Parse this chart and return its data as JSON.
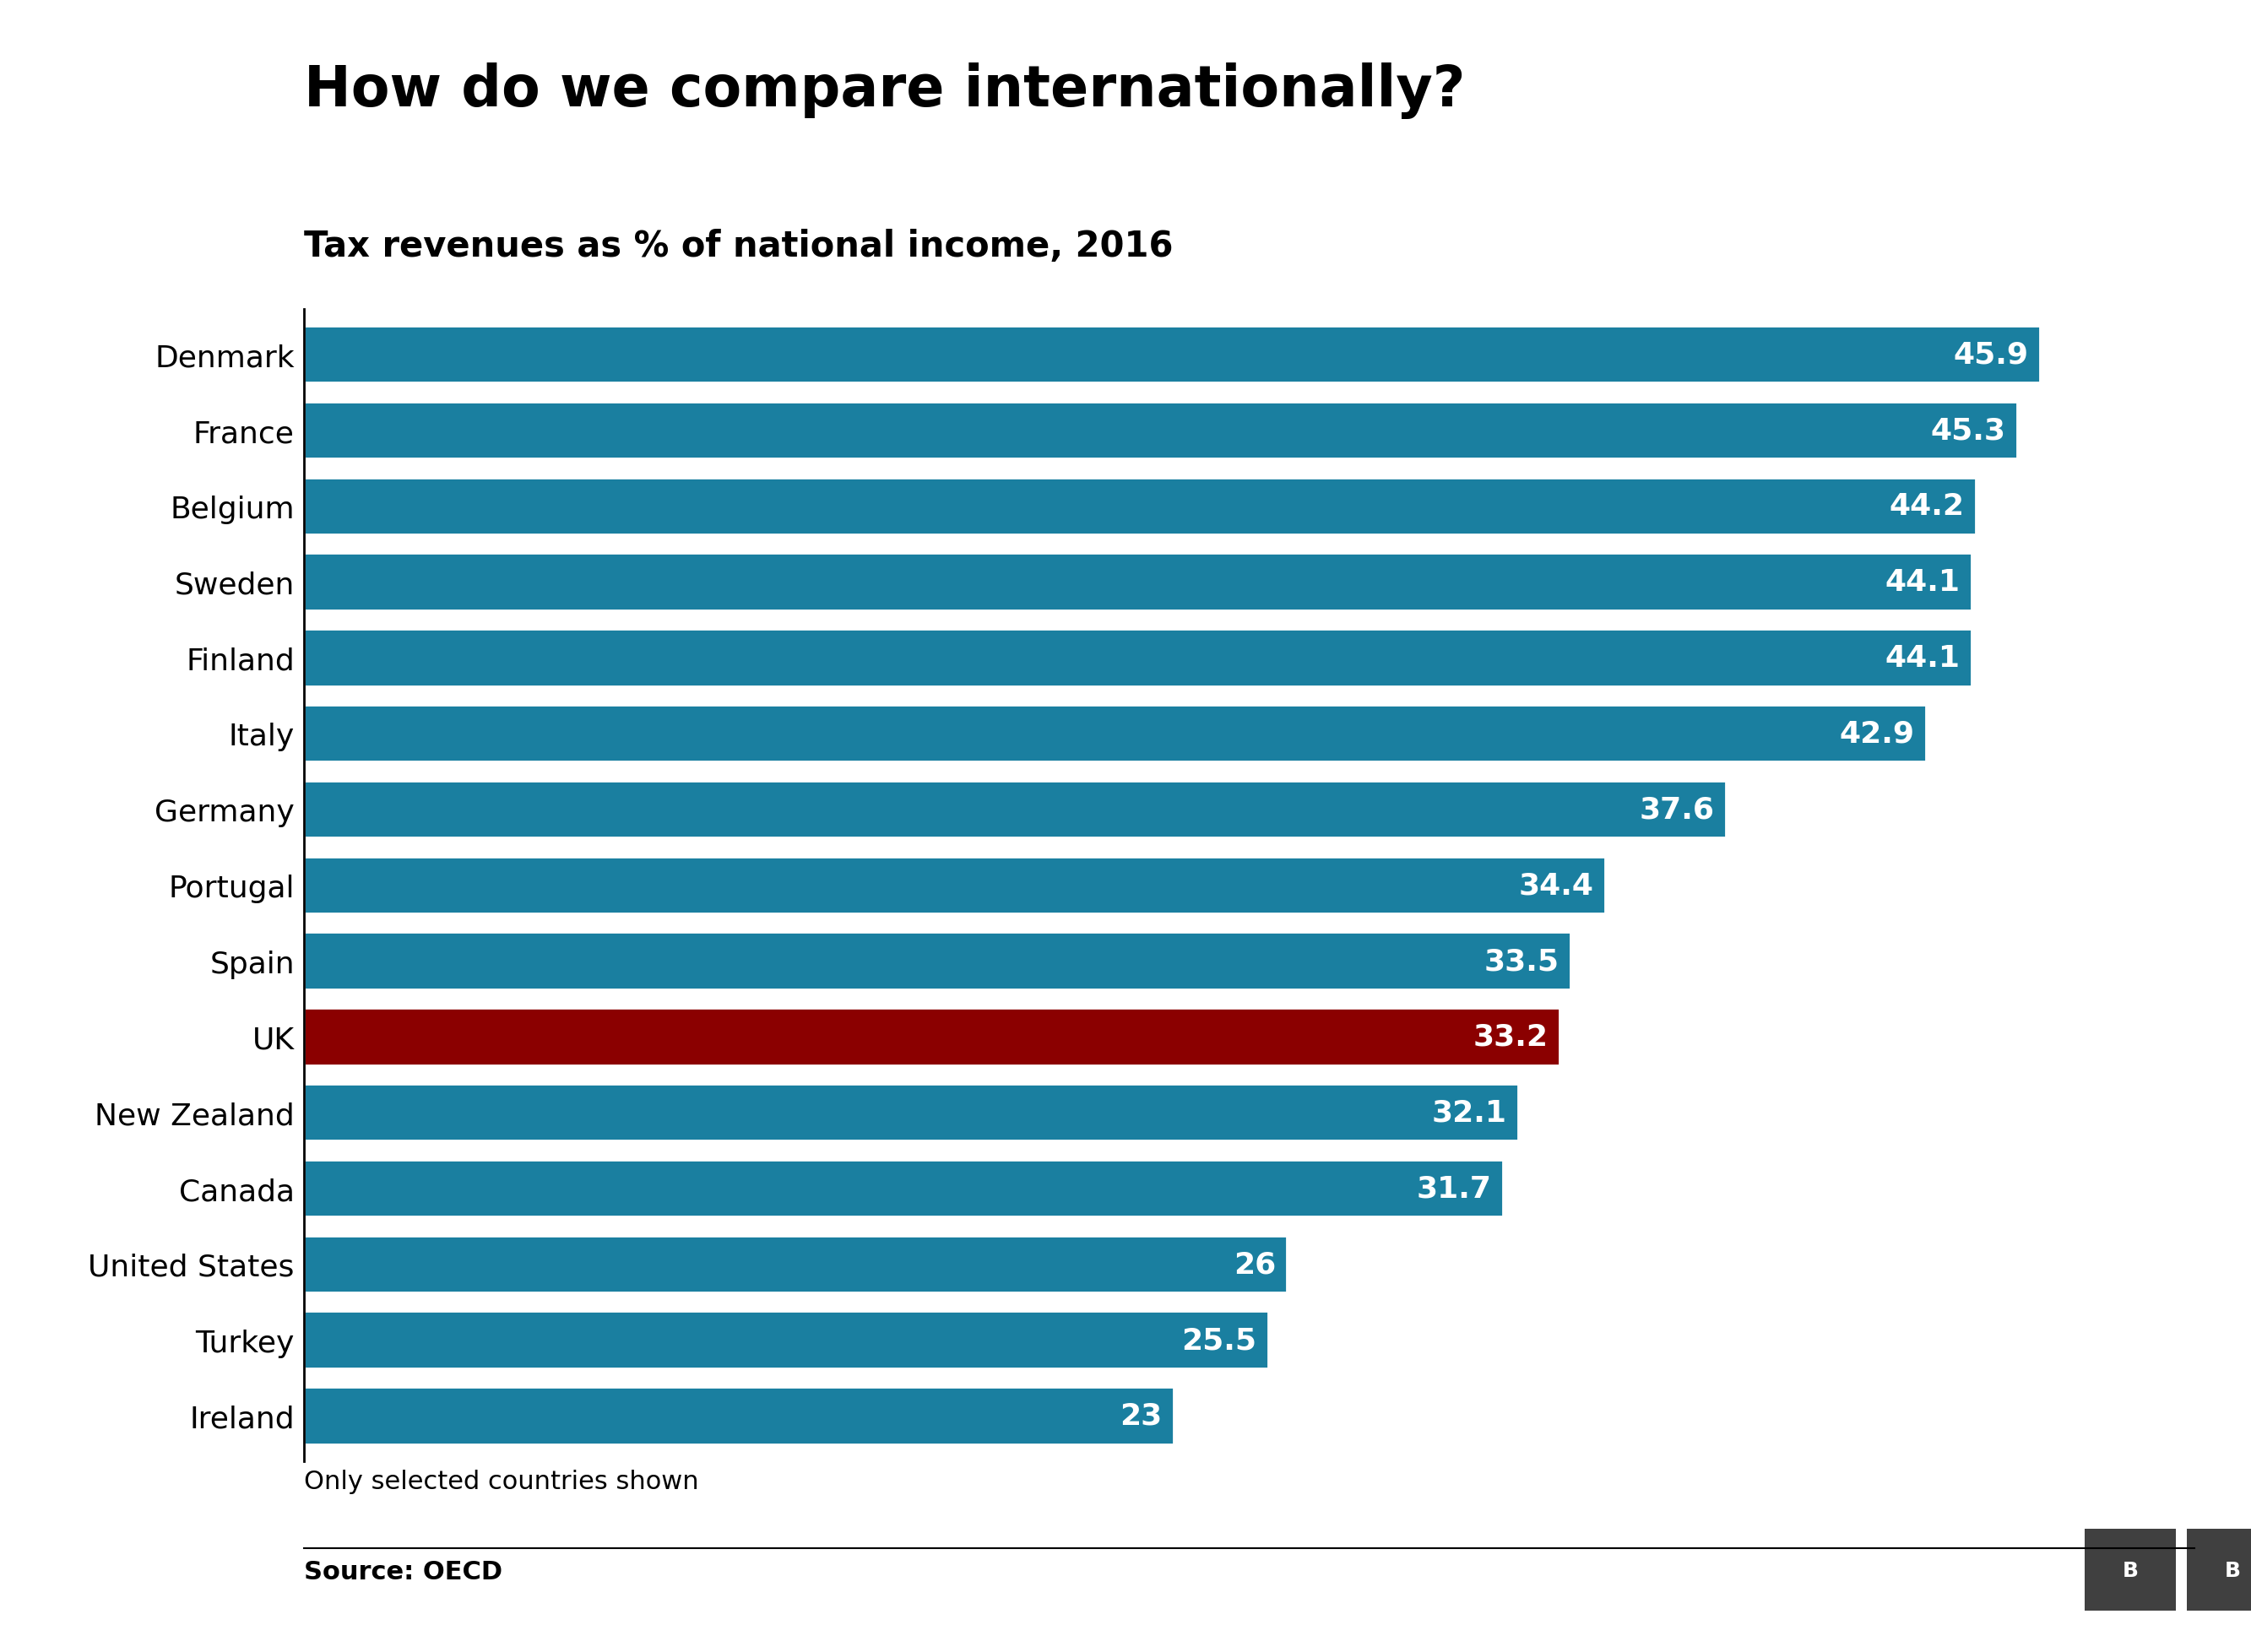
{
  "title": "How do we compare internationally?",
  "subtitle": "Tax revenues as % of national income, 2016",
  "footer_note": "Only selected countries shown",
  "source": "Source: OECD",
  "countries": [
    "Denmark",
    "France",
    "Belgium",
    "Sweden",
    "Finland",
    "Italy",
    "Germany",
    "Portugal",
    "Spain",
    "UK",
    "New Zealand",
    "Canada",
    "United States",
    "Turkey",
    "Ireland"
  ],
  "values": [
    45.9,
    45.3,
    44.2,
    44.1,
    44.1,
    42.9,
    37.6,
    34.4,
    33.5,
    33.2,
    32.1,
    31.7,
    26,
    25.5,
    23
  ],
  "bar_colors": [
    "#1a7fa0",
    "#1a7fa0",
    "#1a7fa0",
    "#1a7fa0",
    "#1a7fa0",
    "#1a7fa0",
    "#1a7fa0",
    "#1a7fa0",
    "#1a7fa0",
    "#8b0000",
    "#1a7fa0",
    "#1a7fa0",
    "#1a7fa0",
    "#1a7fa0",
    "#1a7fa0"
  ],
  "background_color": "#ffffff",
  "bar_label_color": "#ffffff",
  "title_fontsize": 48,
  "subtitle_fontsize": 30,
  "label_fontsize": 26,
  "value_fontsize": 26,
  "footer_fontsize": 22,
  "source_fontsize": 22,
  "xlim": [
    0,
    50
  ],
  "bar_height": 0.75,
  "bbc_logo_color": "#404040"
}
